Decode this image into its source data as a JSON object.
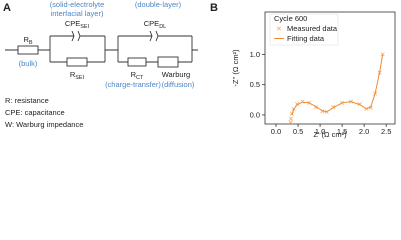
{
  "panel_a": {
    "label": "A",
    "annotations": {
      "sei_line1": "(solid-electrolyte",
      "sei_line2": "interfacial layer)",
      "double_layer": "(double-layer)",
      "bulk": "(bulk)",
      "charge_transfer": "(charge-transfer)",
      "diffusion": "(diffusion)"
    },
    "elements": {
      "rb": {
        "main": "R",
        "sub": "B"
      },
      "cpe_sei": {
        "main": "CPE",
        "sub": "SEI"
      },
      "r_sei": {
        "main": "R",
        "sub": "SEI"
      },
      "cpe_dl": {
        "main": "CPE",
        "sub": "DL"
      },
      "r_ct": {
        "main": "R",
        "sub": "CT"
      },
      "warburg": "Warburg"
    },
    "key": [
      "R: resistance",
      "CPE: capacitance",
      "W: Warburg impedance"
    ]
  },
  "chart_data": {
    "type": "scatter",
    "panel_label": "B",
    "legend_title": "Cycle 600",
    "xlabel": "Z' (Ω cm²)",
    "ylabel": "-Z'' (Ω cm²)",
    "xlim": [
      -0.25,
      2.7
    ],
    "ylim": [
      -0.15,
      1.7
    ],
    "xticks": [
      {
        "value": 0,
        "label": "0.0"
      },
      {
        "value": 0.5,
        "label": "0.5"
      },
      {
        "value": 1,
        "label": "1.0"
      },
      {
        "value": 1.5,
        "label": "1.5"
      },
      {
        "value": 2,
        "label": "2.0"
      },
      {
        "value": 2.5,
        "label": "2.5"
      }
    ],
    "yticks": [
      {
        "value": 0,
        "label": "0.0"
      },
      {
        "value": 0.5,
        "label": "0.5"
      },
      {
        "value": 1,
        "label": "1.0"
      }
    ],
    "series": [
      {
        "name": "Measured data",
        "color": "#f5a35c",
        "marker": "x",
        "x": [
          0.33,
          0.34,
          0.36,
          0.4,
          0.48,
          0.6,
          0.75,
          0.9,
          1.05,
          1.15,
          1.3,
          1.5,
          1.7,
          1.9,
          2.05,
          2.15,
          2.25,
          2.35,
          2.42
        ],
        "y": [
          -0.12,
          -0.06,
          0.02,
          0.1,
          0.18,
          0.22,
          0.2,
          0.13,
          0.06,
          0.05,
          0.13,
          0.2,
          0.22,
          0.18,
          0.1,
          0.12,
          0.35,
          0.7,
          1.0
        ]
      },
      {
        "name": "Fitting data",
        "color": "#f08a2e",
        "marker": "line",
        "x": [
          0.36,
          0.4,
          0.48,
          0.6,
          0.75,
          0.9,
          1.05,
          1.15,
          1.3,
          1.5,
          1.7,
          1.9,
          2.05,
          2.15,
          2.25,
          2.35,
          2.42
        ],
        "y": [
          0.0,
          0.09,
          0.17,
          0.21,
          0.2,
          0.14,
          0.07,
          0.05,
          0.12,
          0.2,
          0.22,
          0.17,
          0.1,
          0.13,
          0.36,
          0.7,
          1.0
        ]
      }
    ]
  }
}
